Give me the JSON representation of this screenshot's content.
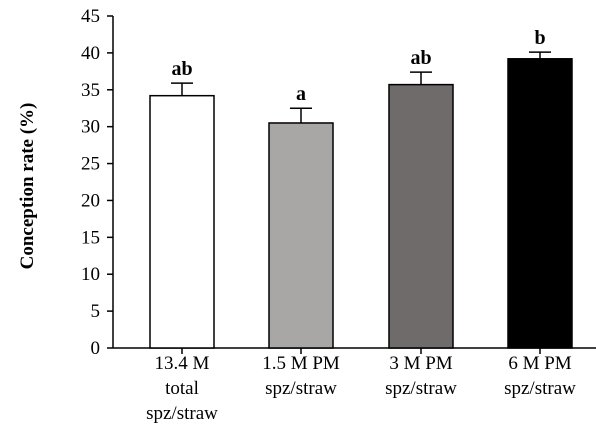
{
  "chart_data": {
    "type": "bar",
    "title": "",
    "xlabel": "",
    "ylabel": "Conception rate (%)",
    "ylim": [
      0,
      45
    ],
    "yticks": [
      0,
      5,
      10,
      15,
      20,
      25,
      30,
      35,
      40,
      45
    ],
    "grid": false,
    "categories": [
      [
        "13.4 M",
        "total",
        "spz/straw"
      ],
      [
        "1.5 M PM",
        "spz/straw"
      ],
      [
        "3 M PM",
        "spz/straw"
      ],
      [
        "6 M PM",
        "spz/straw"
      ]
    ],
    "values": [
      34.2,
      30.5,
      35.7,
      39.2
    ],
    "error": [
      1.7,
      2.0,
      1.7,
      0.9
    ],
    "significance": [
      "ab",
      "a",
      "ab",
      "b"
    ],
    "colors": [
      "#ffffff",
      "#a9a6a6",
      "#6e6b6a",
      "#000000"
    ]
  }
}
